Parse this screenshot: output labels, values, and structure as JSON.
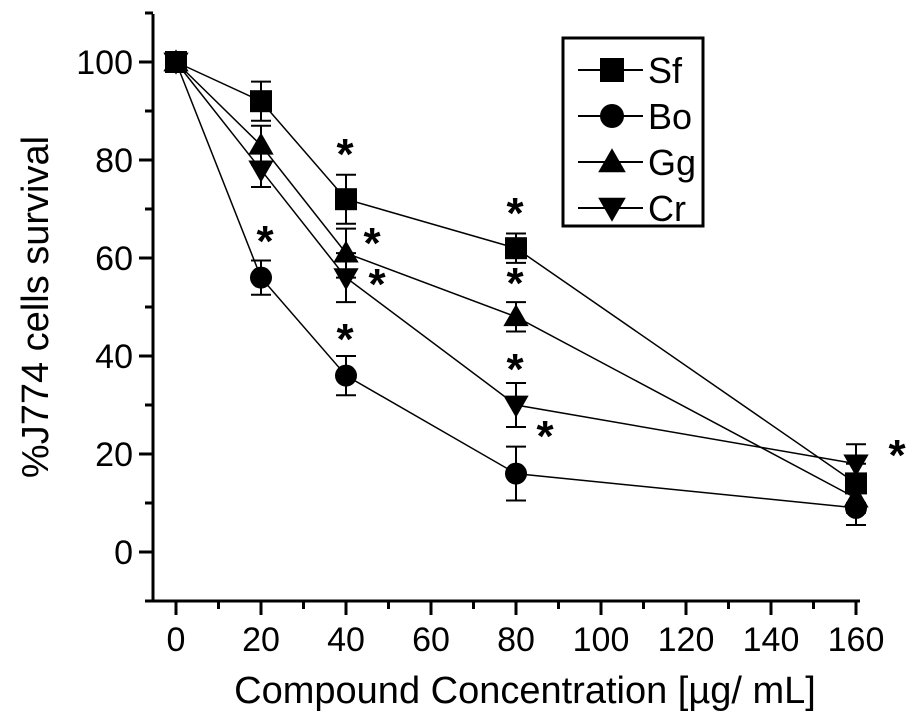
{
  "chart_data": {
    "type": "line",
    "xlabel": "Compound Concentration [µg/ mL]",
    "ylabel": "%J774 cells survival",
    "xlim": [
      -5,
      160
    ],
    "ylim": [
      -10,
      110
    ],
    "x_ticks": [
      0,
      20,
      40,
      60,
      80,
      100,
      120,
      140,
      160
    ],
    "y_ticks": [
      0,
      20,
      40,
      60,
      80,
      100
    ],
    "x": [
      0,
      20,
      40,
      80,
      160
    ],
    "legend_position": "top-right",
    "series": [
      {
        "name": "Sf",
        "marker": "square",
        "values": [
          100,
          92,
          72,
          62,
          14
        ],
        "errors": [
          1.5,
          4,
          5,
          3,
          4
        ]
      },
      {
        "name": "Bo",
        "marker": "circle",
        "values": [
          100,
          56,
          36,
          16,
          9
        ],
        "errors": [
          1.5,
          3.5,
          4,
          5.5,
          3.5
        ]
      },
      {
        "name": "Gg",
        "marker": "triangle-up",
        "values": [
          100,
          83,
          61,
          48,
          11
        ],
        "errors": [
          1.5,
          4,
          5,
          3,
          3
        ]
      },
      {
        "name": "Cr",
        "marker": "triangle-down",
        "values": [
          100,
          78,
          56,
          30,
          18
        ],
        "errors": [
          1.5,
          3.5,
          5,
          4.5,
          4
        ]
      }
    ],
    "significance": [
      {
        "symbol": "*",
        "series": "Bo",
        "x": 20
      },
      {
        "symbol": "*",
        "series": "Sf",
        "x": 40
      },
      {
        "symbol": "*",
        "series": "Gg",
        "x": 40
      },
      {
        "symbol": "*",
        "series": "Cr",
        "x": 40
      },
      {
        "symbol": "*",
        "series": "Bo",
        "x": 40
      },
      {
        "symbol": "*",
        "series": "Sf",
        "x": 80
      },
      {
        "symbol": "*",
        "series": "Gg",
        "x": 80
      },
      {
        "symbol": "*",
        "series": "Cr",
        "x": 80
      },
      {
        "symbol": "*",
        "series": "Bo",
        "x": 80
      },
      {
        "symbol": "*",
        "series": "Cr",
        "x": 160
      }
    ]
  }
}
